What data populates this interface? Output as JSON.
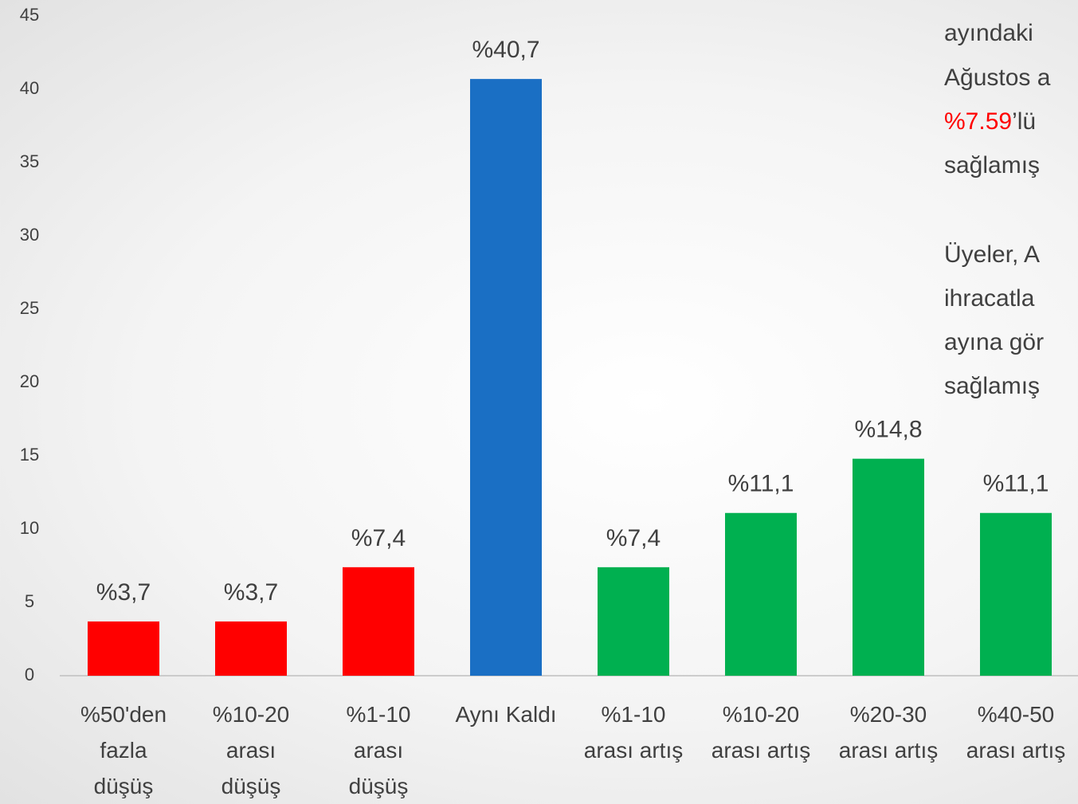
{
  "chart_data": {
    "type": "bar",
    "categories": [
      "%50'den\nfazla\ndüşüş",
      "%10-20\narası\ndüşüş",
      "%1-10\narası\ndüşüş",
      "Aynı Kaldı",
      "%1-10\narası artış",
      "%10-20\narası artış",
      "%20-30\narası artış",
      "%40-50\narası artış"
    ],
    "values": [
      3.7,
      3.7,
      7.4,
      40.7,
      7.4,
      11.1,
      14.8,
      11.1
    ],
    "value_labels": [
      "%3,7",
      "%3,7",
      "%7,4",
      "%40,7",
      "%7,4",
      "%11,1",
      "%14,8",
      "%11,1"
    ],
    "colors": [
      "#ff0000",
      "#ff0000",
      "#ff0000",
      "#1a6fc4",
      "#00b050",
      "#00b050",
      "#00b050",
      "#00b050"
    ],
    "ylim": [
      0,
      45
    ],
    "yticks": [
      0,
      5,
      10,
      15,
      20,
      25,
      30,
      35,
      40,
      45
    ],
    "grid": false
  },
  "annotation": {
    "highlight_color": "#ff0000",
    "lines": [
      {
        "text": "ayındaki"
      },
      {
        "text": "Ağustos a"
      },
      {
        "highlight": "%7.59",
        "text": "’lü"
      },
      {
        "text": "sağlamış"
      },
      {
        "text": "Üyeler, A"
      },
      {
        "text": "ihracatla"
      },
      {
        "text": "ayına gör"
      },
      {
        "text": "sağlamış"
      }
    ]
  }
}
